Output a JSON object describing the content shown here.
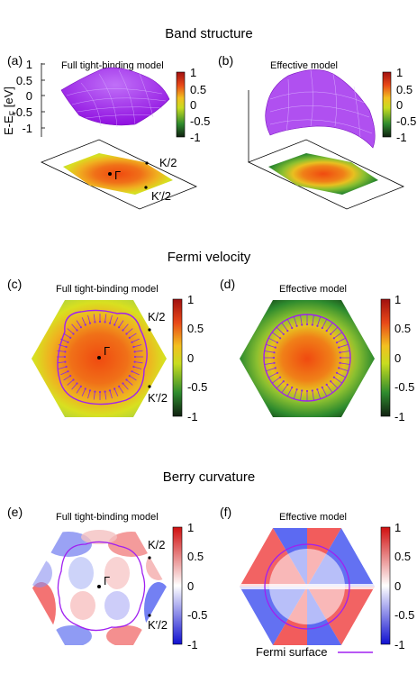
{
  "sections": {
    "band": "Band structure",
    "velocity": "Fermi velocity",
    "berry": "Berry curvature"
  },
  "panels": {
    "a": {
      "label": "(a)",
      "subtitle": "Full tight-binding model"
    },
    "b": {
      "label": "(b)",
      "subtitle": "Effective model"
    },
    "c": {
      "label": "(c)",
      "subtitle": "Full tight-binding model"
    },
    "d": {
      "label": "(d)",
      "subtitle": "Effective model"
    },
    "e": {
      "label": "(e)",
      "subtitle": "Full tight-binding model"
    },
    "f": {
      "label": "(f)",
      "subtitle": "Effective model"
    }
  },
  "axis3d": {
    "ylabel": "E-E",
    "ylabel_sub": "F",
    "ylabel_unit": " [eV]",
    "ticks": [
      "1",
      "0.5",
      "0",
      "-0.5",
      "-1"
    ]
  },
  "points": {
    "gamma": "Γ",
    "k_half": "K/2",
    "kprime_half": "K′/2"
  },
  "colorbar_ticks": [
    "1",
    "0.5",
    "0",
    "-0.5",
    "-1"
  ],
  "legend": {
    "fermi_surface": "Fermi surface"
  },
  "colors": {
    "surface": "#a020f0",
    "fermi_line": "#a020f0",
    "arrow": "#8a2be2",
    "band_map": [
      "#1a3a1a",
      "#2f8f2f",
      "#d8e020",
      "#f0a020",
      "#e03010",
      "#a01010"
    ],
    "berry_map": [
      "#1010d0",
      "#8080f0",
      "#ffffff",
      "#f08080",
      "#d01010"
    ]
  }
}
